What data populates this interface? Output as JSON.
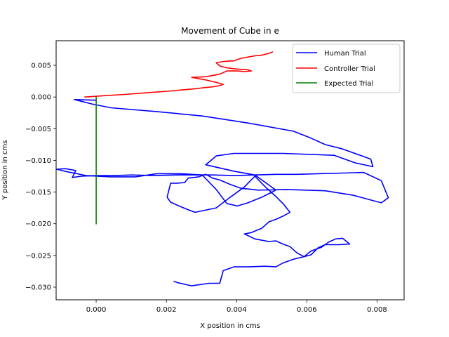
{
  "chart_data": {
    "type": "line",
    "title": "Movement of Cube in e",
    "xlabel": "X position in cms",
    "ylabel": "Y position in cms",
    "xlim": [
      -0.00114,
      0.00877
    ],
    "ylim": [
      -0.032,
      0.00888
    ],
    "xticks": [
      0.0,
      0.002,
      0.004,
      0.006,
      0.008
    ],
    "xtick_labels": [
      "0.000",
      "0.002",
      "0.004",
      "0.006",
      "0.008"
    ],
    "yticks": [
      0.005,
      0.0,
      -0.005,
      -0.01,
      -0.015,
      -0.02,
      -0.025,
      -0.03
    ],
    "ytick_labels": [
      "0.005",
      "0.000",
      "−0.005",
      "−0.010",
      "−0.015",
      "−0.020",
      "−0.025",
      "−0.030"
    ],
    "grid": false,
    "legend_position": "top-right",
    "series": [
      {
        "name": "Human Trial",
        "color": "#0000ff",
        "x": [
          0.0,
          -0.00062,
          -0.00012,
          0.00042,
          0.00172,
          0.00302,
          0.00432,
          0.00562,
          0.00612,
          0.00652,
          0.00702,
          0.00782,
          0.00788,
          0.00738,
          0.00678,
          0.00532,
          0.00392,
          0.00342,
          0.00312,
          0.00392,
          0.00452,
          0.00512,
          0.00472,
          0.00432,
          0.00402,
          0.00372,
          0.00342,
          0.00302,
          0.00242,
          0.00172,
          0.00112,
          0.00042,
          -0.00028,
          -0.00082,
          -0.00112,
          -0.00088,
          -0.00058,
          -0.00068,
          -0.00042,
          2e-05,
          0.00052,
          0.00102,
          0.00162,
          0.00232,
          0.00272,
          0.00332,
          0.00392,
          0.00452,
          0.00512,
          0.00572,
          0.00632,
          0.00702,
          0.00762,
          0.00812,
          0.00832,
          0.00812,
          0.00772,
          0.00732,
          0.00652,
          0.00542,
          0.00462,
          0.00412,
          0.00382,
          0.00352,
          0.00332,
          0.00312,
          0.00292,
          0.00262,
          0.00252,
          0.00232,
          0.00212,
          0.00202,
          0.00212,
          0.00232,
          0.00262,
          0.00282,
          0.00342,
          0.00382,
          0.00422,
          0.00452,
          0.00482,
          0.00512,
          0.00532,
          0.00552,
          0.00532,
          0.00512,
          0.00492,
          0.00472,
          0.00442,
          0.00422,
          0.00452,
          0.00492,
          0.00512,
          0.00532,
          0.00552,
          0.00572,
          0.00592,
          0.00612,
          0.00642,
          0.00662,
          0.00682,
          0.00702,
          0.00722,
          0.00692,
          0.00652,
          0.00632,
          0.00612,
          0.00592,
          0.00562,
          0.00532,
          0.00512,
          0.00482,
          0.00432,
          0.00392,
          0.00362,
          0.00352,
          0.00322,
          0.00272,
          0.00232,
          0.00222
        ],
        "y": [
          -0.0005,
          -0.0004,
          -0.0011,
          -0.0017,
          -0.0023,
          -0.003,
          -0.0041,
          -0.0054,
          -0.0065,
          -0.0075,
          -0.0082,
          -0.0098,
          -0.011,
          -0.0104,
          -0.0092,
          -0.0089,
          -0.0089,
          -0.0093,
          -0.0107,
          -0.0117,
          -0.0123,
          -0.0147,
          -0.0158,
          -0.0167,
          -0.0172,
          -0.0168,
          -0.0146,
          -0.0123,
          -0.0121,
          -0.0121,
          -0.0126,
          -0.0126,
          -0.0124,
          -0.0118,
          -0.0114,
          -0.0113,
          -0.0116,
          -0.0127,
          -0.0125,
          -0.0124,
          -0.0124,
          -0.0123,
          -0.0124,
          -0.0123,
          -0.0123,
          -0.0123,
          -0.0124,
          -0.0123,
          -0.0122,
          -0.0122,
          -0.0121,
          -0.012,
          -0.0119,
          -0.0132,
          -0.0159,
          -0.0167,
          -0.0161,
          -0.0155,
          -0.0148,
          -0.0146,
          -0.0147,
          -0.0144,
          -0.0138,
          -0.0131,
          -0.0128,
          -0.0122,
          -0.0126,
          -0.0128,
          -0.0135,
          -0.0136,
          -0.0136,
          -0.0158,
          -0.0166,
          -0.0171,
          -0.0178,
          -0.0182,
          -0.0175,
          -0.0158,
          -0.0142,
          -0.0125,
          -0.0142,
          -0.0157,
          -0.0168,
          -0.0182,
          -0.0188,
          -0.0193,
          -0.0197,
          -0.0207,
          -0.0214,
          -0.0216,
          -0.0224,
          -0.0228,
          -0.0227,
          -0.0232,
          -0.0236,
          -0.0246,
          -0.0252,
          -0.0243,
          -0.0237,
          -0.0229,
          -0.0224,
          -0.0223,
          -0.0232,
          -0.0233,
          -0.0233,
          -0.0238,
          -0.0249,
          -0.0252,
          -0.0256,
          -0.0262,
          -0.0268,
          -0.0267,
          -0.0268,
          -0.0268,
          -0.0274,
          -0.0294,
          -0.0294,
          -0.0298,
          -0.0293,
          -0.0291
        ]
      },
      {
        "name": "Controller Trial",
        "color": "#ff0000",
        "x": [
          -0.00032,
          0.00022,
          0.00082,
          0.00152,
          0.00202,
          0.00242,
          0.00282,
          0.00312,
          0.00332,
          0.00352,
          0.00362,
          0.00342,
          0.00312,
          0.00272,
          0.00312,
          0.00352,
          0.00372,
          0.00402,
          0.00422,
          0.00442,
          0.00432,
          0.00402,
          0.00372,
          0.00352,
          0.00342,
          0.00362,
          0.00392,
          0.00412,
          0.00432,
          0.00452,
          0.00472,
          0.00492,
          0.00502
        ],
        "y": [
          0.0,
          0.0002,
          0.0004,
          0.0007,
          0.0009,
          0.0011,
          0.0013,
          0.0015,
          0.0016,
          0.0018,
          0.002,
          0.0023,
          0.0027,
          0.0031,
          0.0032,
          0.0036,
          0.0041,
          0.0041,
          0.004,
          0.0041,
          0.0043,
          0.0044,
          0.0046,
          0.0049,
          0.0054,
          0.0056,
          0.0057,
          0.0061,
          0.0063,
          0.0065,
          0.0066,
          0.0069,
          0.0071
        ]
      },
      {
        "name": "Expected Trial",
        "color": "#008000",
        "x": [
          0.0,
          0.0
        ],
        "y": [
          0.0,
          -0.02
        ]
      }
    ]
  }
}
